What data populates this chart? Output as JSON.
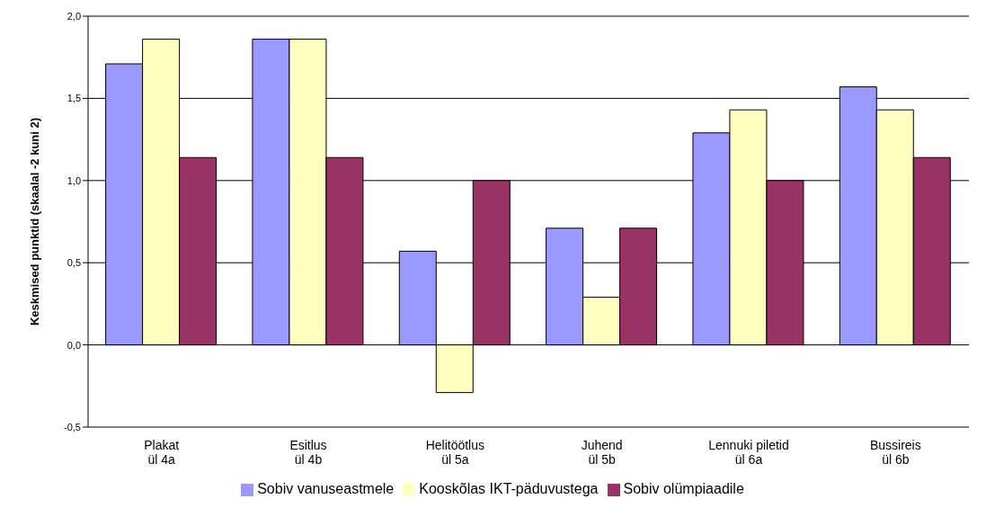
{
  "chart_data": {
    "type": "bar",
    "ylabel": "Keskmised punktid (skaalal -2 kuni 2)",
    "categories": [
      "Plakat\nül 4a",
      "Esitlus\nül 4b",
      "Helitöötlus\nül 5a",
      "Juhend\nül 5b",
      "Lennuki piletid\nül 6a",
      "Bussireis\nül 6b"
    ],
    "series": [
      {
        "name": "Sobiv vanuseastmele",
        "color": "#9999ff",
        "values": [
          1.71,
          1.86,
          0.57,
          0.71,
          1.29,
          1.57
        ]
      },
      {
        "name": "Kooskõlas IKT-päduvustega",
        "color": "#ffffc0",
        "values": [
          1.86,
          1.86,
          -0.29,
          0.29,
          1.43,
          1.43
        ]
      },
      {
        "name": "Sobiv olümpiaadile",
        "color": "#993366",
        "values": [
          1.14,
          1.14,
          1.0,
          0.71,
          1.0,
          1.14
        ]
      }
    ],
    "ylim": [
      -0.5,
      2.0
    ],
    "yticks": [
      {
        "value": -0.5,
        "label": "-0,5"
      },
      {
        "value": 0,
        "label": "0,0"
      },
      {
        "value": 0.5,
        "label": "0,5"
      },
      {
        "value": 1.0,
        "label": "1,0"
      },
      {
        "value": 1.5,
        "label": "1,5"
      },
      {
        "value": 2.0,
        "label": "2,0"
      }
    ],
    "grid": "y",
    "legend": "bottom"
  }
}
